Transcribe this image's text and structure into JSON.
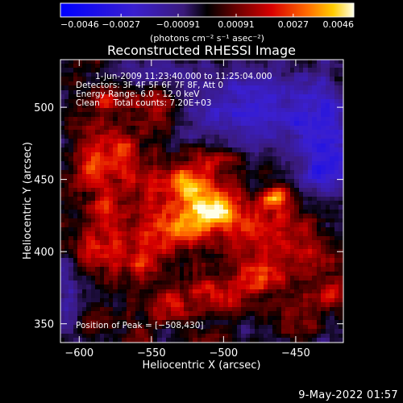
{
  "chart_data": {
    "type": "heatmap",
    "title": "Reconstructed RHESSI Image",
    "xlabel": "Heliocentric X (arcsec)",
    "ylabel": "Heliocentric Y (arcsec)",
    "xlim": [
      -613,
      -417
    ],
    "ylim": [
      337,
      533
    ],
    "xticks": [
      -600,
      -550,
      -500,
      -450
    ],
    "yticks": [
      350,
      400,
      450,
      500
    ],
    "xtick_labels": [
      "−600",
      "−550",
      "−500",
      "−450"
    ],
    "ytick_labels": [
      "350",
      "400",
      "450",
      "500"
    ],
    "colorbar": {
      "range": [
        -0.0046,
        0.0046
      ],
      "tick_values": [
        -0.0046,
        -0.0027,
        -0.00091,
        0.00091,
        0.0027,
        0.0046
      ],
      "tick_labels": [
        "−0.0046",
        "−0.0027",
        "−0.00091",
        "0.00091",
        "0.0027",
        "0.0046"
      ],
      "unit_label": "(photons cm⁻² s⁻¹ asec⁻²)"
    },
    "annotations": [
      "1-Jun-2009 11:23:40.000 to 11:25:04.000",
      "Detectors: 3F 4F 5F 6F 7F 8F, Att 0",
      "Energy Range: 6.0 - 12.0 keV",
      "Clean     Total counts: 7.20E+03"
    ],
    "peak_label": "Position of Peak = [−508,430]",
    "peak": {
      "x": -508,
      "y": 430
    },
    "emission_blobs": [
      {
        "x": -508,
        "y": 430,
        "sx": 13,
        "sy": 10,
        "a": 1.0
      },
      {
        "x": -522,
        "y": 447,
        "sx": 9,
        "sy": 8,
        "a": 0.75
      },
      {
        "x": -530,
        "y": 415,
        "sx": 14,
        "sy": 9,
        "a": 0.55
      },
      {
        "x": -545,
        "y": 435,
        "sx": 15,
        "sy": 17,
        "a": 0.5
      },
      {
        "x": -575,
        "y": 470,
        "sx": 16,
        "sy": 14,
        "a": 0.5
      },
      {
        "x": -590,
        "y": 455,
        "sx": 10,
        "sy": 9,
        "a": 0.45
      },
      {
        "x": -578,
        "y": 505,
        "sx": 10,
        "sy": 8,
        "a": 0.45
      },
      {
        "x": -545,
        "y": 500,
        "sx": 12,
        "sy": 10,
        "a": 0.4
      },
      {
        "x": -590,
        "y": 400,
        "sx": 11,
        "sy": 12,
        "a": 0.45
      },
      {
        "x": -560,
        "y": 395,
        "sx": 12,
        "sy": 10,
        "a": 0.5
      },
      {
        "x": -475,
        "y": 415,
        "sx": 18,
        "sy": 16,
        "a": 0.55
      },
      {
        "x": -462,
        "y": 437,
        "sx": 6,
        "sy": 5,
        "a": 0.7
      },
      {
        "x": -470,
        "y": 382,
        "sx": 12,
        "sy": 9,
        "a": 0.5
      },
      {
        "x": -440,
        "y": 395,
        "sx": 10,
        "sy": 11,
        "a": 0.45
      },
      {
        "x": -500,
        "y": 372,
        "sx": 16,
        "sy": 10,
        "a": 0.45
      },
      {
        "x": -535,
        "y": 362,
        "sx": 11,
        "sy": 9,
        "a": 0.45
      },
      {
        "x": -595,
        "y": 350,
        "sx": 10,
        "sy": 7,
        "a": 0.3
      },
      {
        "x": -505,
        "y": 462,
        "sx": 12,
        "sy": 8,
        "a": 0.45
      },
      {
        "x": -450,
        "y": 357,
        "sx": 10,
        "sy": 8,
        "a": 0.35
      },
      {
        "x": -425,
        "y": 370,
        "sx": 6,
        "sy": 7,
        "a": 0.35
      },
      {
        "x": -580,
        "y": 430,
        "sx": 8,
        "sy": 10,
        "a": 0.4
      }
    ],
    "negative_regions": [
      {
        "x": -480,
        "y": 500,
        "sx": 35,
        "sy": 20,
        "a": 0.7
      },
      {
        "x": -430,
        "y": 480,
        "sx": 15,
        "sy": 25,
        "a": 0.6
      },
      {
        "x": -550,
        "y": 525,
        "sx": 18,
        "sy": 8,
        "a": 0.4
      },
      {
        "x": -605,
        "y": 360,
        "sx": 8,
        "sy": 25,
        "a": 0.45
      },
      {
        "x": -430,
        "y": 455,
        "sx": 10,
        "sy": 12,
        "a": 0.5
      }
    ]
  },
  "footer": {
    "timestamp": "9-May-2022 01:57"
  }
}
